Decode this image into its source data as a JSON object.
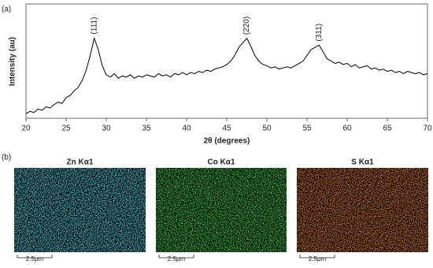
{
  "panel_labels": [
    "(a)",
    "(b)"
  ],
  "chart_data": {
    "type": "line",
    "xlabel": "2θ (degrees)",
    "ylabel": "Intensity (au)",
    "x": [
      20,
      20.5,
      21,
      21.5,
      22,
      22.5,
      23,
      23.5,
      24,
      24.5,
      25,
      25.5,
      26,
      26.5,
      27,
      27.5,
      28,
      28.5,
      29,
      29.5,
      30,
      30.5,
      31,
      31.5,
      32,
      32.5,
      33,
      33.5,
      34,
      34.5,
      35,
      35.5,
      36,
      36.5,
      37,
      37.5,
      38,
      38.5,
      39,
      39.5,
      40,
      40.5,
      41,
      41.5,
      42,
      42.5,
      43,
      43.5,
      44,
      44.5,
      45,
      45.5,
      46,
      46.5,
      47,
      47.5,
      48,
      48.5,
      49,
      49.5,
      50,
      50.5,
      51,
      51.5,
      52,
      52.5,
      53,
      53.5,
      54,
      54.5,
      55,
      55.5,
      56,
      56.5,
      57,
      57.5,
      58,
      58.5,
      59,
      59.5,
      60,
      60.5,
      61,
      61.5,
      62,
      62.5,
      63,
      63.5,
      64,
      64.5,
      65,
      65.5,
      66,
      66.5,
      67,
      67.5,
      68,
      68.5,
      69,
      69.5,
      70
    ],
    "series": [
      {
        "color": "#000000",
        "values": [
          4,
          6,
          5,
          8,
          7,
          10,
          9,
          12,
          14,
          13,
          18,
          20,
          24,
          27,
          33,
          42,
          55,
          70,
          60,
          46,
          38,
          36,
          39,
          35,
          37,
          36,
          38,
          35,
          37,
          36,
          38,
          37,
          36,
          39,
          37,
          38,
          36,
          39,
          38,
          40,
          38,
          40,
          39,
          41,
          40,
          42,
          41,
          43,
          44,
          45,
          47,
          50,
          55,
          62,
          66,
          70,
          63,
          55,
          50,
          47,
          46,
          44,
          45,
          43,
          44,
          45,
          44,
          46,
          48,
          50,
          55,
          60,
          62,
          64,
          58,
          52,
          50,
          48,
          49,
          47,
          48,
          45,
          47,
          44,
          45,
          46,
          43,
          44,
          42,
          43,
          41,
          42,
          40,
          41,
          39,
          41,
          40,
          39,
          40,
          38,
          39
        ]
      }
    ],
    "xlim": [
      20,
      70
    ],
    "ylim": [
      0,
      100
    ],
    "xticks": [
      20,
      25,
      30,
      35,
      40,
      45,
      50,
      55,
      60,
      65,
      70
    ],
    "annotations": [
      {
        "text": "(111)",
        "x": 28.5
      },
      {
        "text": "(220)",
        "x": 47.5
      },
      {
        "text": "(311)",
        "x": 56.5
      }
    ]
  },
  "maps": [
    {
      "title": "Zn Kα1",
      "color": "#4fd0e0",
      "scale_label": "2.5μm"
    },
    {
      "title": "Co Kα1",
      "color": "#3fd04a",
      "scale_label": "2.5μm"
    },
    {
      "title": "S Kα1",
      "color": "#e07a30",
      "scale_label": "2.5μm"
    }
  ]
}
